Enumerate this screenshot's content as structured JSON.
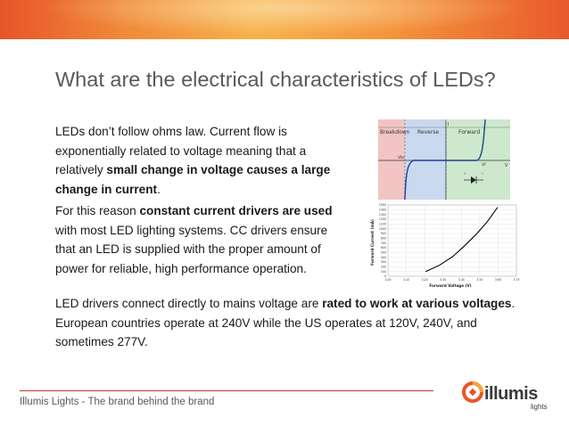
{
  "slide": {
    "title": "What are the electrical characteristics of LEDs?",
    "paragraph1": [
      {
        "text": "LEDs don’t follow ohms law. Current flow is exponentially related to voltage meaning that a relatively ",
        "bold": false
      },
      {
        "text": "small change in voltage causes a large change in current",
        "bold": true
      },
      {
        "text": ".",
        "bold": false
      }
    ],
    "paragraph2": [
      {
        "text": "For this reason ",
        "bold": false
      },
      {
        "text": "constant current drivers are used",
        "bold": true
      },
      {
        "text": " with most LED lighting systems. CC drivers ensure that an LED is supplied with the proper amount of power for reliable, high performance operation.",
        "bold": false
      }
    ],
    "paragraph3": [
      {
        "text": "LED drivers connect directly to mains voltage are ",
        "bold": false
      },
      {
        "text": "rated to work at various voltages",
        "bold": true
      },
      {
        "text": ". European countries operate at 240V while the US operates at 120V, 240V, and sometimes 277V.",
        "bold": false
      }
    ]
  },
  "iv_diagram": {
    "regions": [
      "Breakdown",
      "Reverse",
      "Forward"
    ],
    "axis_labels": {
      "current": "I",
      "voltage": "V"
    },
    "markers": {
      "vbr": "Vbr",
      "vf": "Vf"
    },
    "colors": {
      "breakdown": "#f2c4c4",
      "reverse": "#c9d9ef",
      "forward": "#cde8cd"
    }
  },
  "chart_data": {
    "type": "line",
    "xlabel": "Forward Voltage (V)",
    "ylabel": "Forward Current (mA)",
    "xlim": [
      3.0,
      3.75
    ],
    "ylim": [
      0,
      1500
    ],
    "xticks": [
      "3.00",
      "3.10",
      "3.20",
      "3.30",
      "3.40",
      "3.50",
      "3.60",
      "3.75"
    ],
    "yticks": [
      "0",
      "100",
      "200",
      "300",
      "400",
      "500",
      "600",
      "700",
      "800",
      "900",
      "1000",
      "1100",
      "1200",
      "1300",
      "1400",
      "1500"
    ],
    "series": [
      {
        "x": [
          3.22,
          3.3,
          3.38,
          3.45,
          3.52,
          3.58,
          3.64
        ],
        "y": [
          100,
          230,
          420,
          650,
          900,
          1150,
          1450
        ]
      }
    ],
    "grid": true
  },
  "footer": {
    "text": "Illumis Lights - The brand behind the brand",
    "logo_text": "illumis",
    "logo_sub": "lights"
  }
}
